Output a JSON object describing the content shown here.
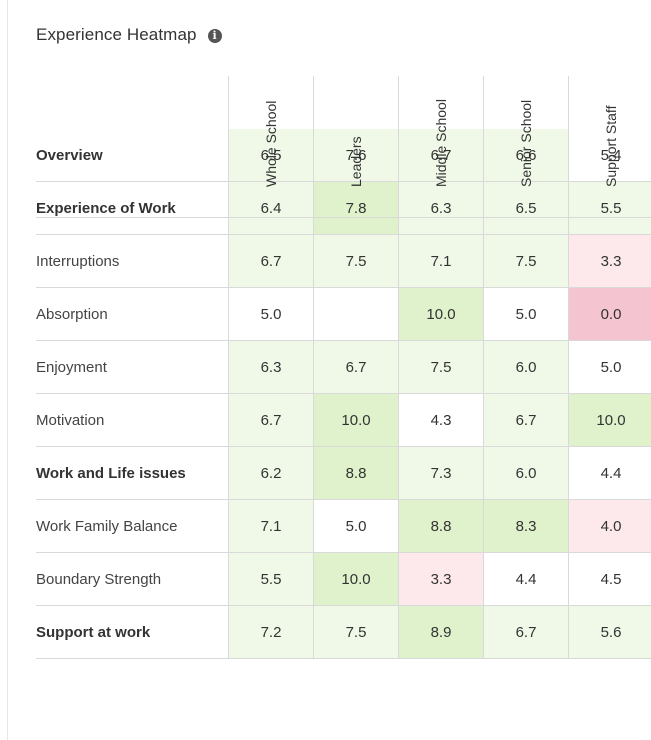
{
  "header": {
    "title": "Experience Heatmap",
    "info_icon": "info-icon"
  },
  "colors": {
    "light_green": "#f0f9e8",
    "medium_green": "#e0f2cc",
    "light_pink": "#fde8ec",
    "pink": "#f4c4d0",
    "neutral": "#ffffff"
  },
  "chart_data": {
    "type": "heatmap",
    "title": "Experience Heatmap",
    "columns": [
      "Whole School",
      "Leaders",
      "Middle School",
      "Senior School",
      "Support Staff"
    ],
    "rows": [
      {
        "label": "Overview",
        "bold": true,
        "values": [
          "6.5",
          "7.6",
          "6.7",
          "6.6",
          "5.4"
        ]
      },
      {
        "label": "Experience of Work",
        "bold": true,
        "values": [
          "6.4",
          "7.8",
          "6.3",
          "6.5",
          "5.5"
        ]
      },
      {
        "label": "Interruptions",
        "bold": false,
        "values": [
          "6.7",
          "7.5",
          "7.1",
          "7.5",
          "3.3"
        ]
      },
      {
        "label": "Absorption",
        "bold": false,
        "values": [
          "5.0",
          "",
          "10.0",
          "5.0",
          "0.0"
        ]
      },
      {
        "label": "Enjoyment",
        "bold": false,
        "values": [
          "6.3",
          "6.7",
          "7.5",
          "6.0",
          "5.0"
        ]
      },
      {
        "label": "Motivation",
        "bold": false,
        "values": [
          "6.7",
          "10.0",
          "4.3",
          "6.7",
          "10.0"
        ]
      },
      {
        "label": "Work and Life issues",
        "bold": true,
        "values": [
          "6.2",
          "8.8",
          "7.3",
          "6.0",
          "4.4"
        ]
      },
      {
        "label": "Work Family Balance",
        "bold": false,
        "values": [
          "7.1",
          "5.0",
          "8.8",
          "8.3",
          "4.0"
        ]
      },
      {
        "label": "Boundary Strength",
        "bold": false,
        "values": [
          "5.5",
          "10.0",
          "3.3",
          "4.4",
          "4.5"
        ]
      },
      {
        "label": "Support at work",
        "bold": true,
        "values": [
          "7.2",
          "7.5",
          "8.9",
          "6.7",
          "5.6"
        ]
      }
    ]
  }
}
